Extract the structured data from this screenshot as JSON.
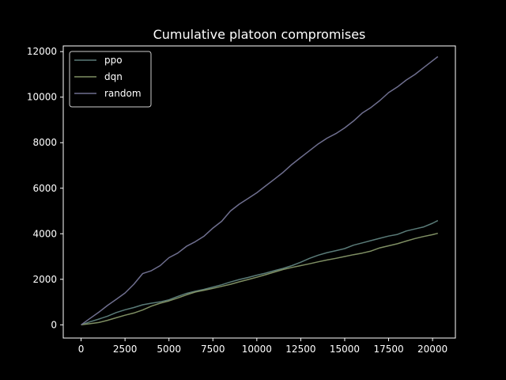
{
  "chart_data": {
    "type": "line",
    "title": "Cumulative platoon compromises",
    "xlabel": "",
    "ylabel": "",
    "xlim": [
      -1015,
      21300
    ],
    "ylim": [
      -580,
      12250
    ],
    "x_ticks": [
      0,
      2500,
      5000,
      7500,
      10000,
      12500,
      15000,
      17500,
      20000
    ],
    "y_ticks": [
      0,
      2000,
      4000,
      6000,
      8000,
      10000,
      12000
    ],
    "x_tick_labels": [
      "0",
      "2500",
      "5000",
      "7500",
      "10000",
      "12500",
      "15000",
      "17500",
      "20000"
    ],
    "y_tick_labels": [
      "0",
      "2000",
      "4000",
      "6000",
      "8000",
      "10000",
      "12000"
    ],
    "grid": false,
    "legend_position": "top-left",
    "series": [
      {
        "name": "ppo",
        "color": "#5a7b78",
        "x": [
          0,
          500,
          1000,
          1500,
          2000,
          2500,
          3000,
          3500,
          4000,
          4500,
          5000,
          5500,
          6000,
          6500,
          7000,
          7500,
          8000,
          8500,
          9000,
          9500,
          10000,
          10500,
          11000,
          11500,
          12000,
          12500,
          13000,
          13500,
          14000,
          14500,
          15000,
          15500,
          16000,
          16500,
          17000,
          17500,
          18000,
          18500,
          19000,
          19500,
          20000,
          20300
        ],
        "y": [
          0,
          130,
          250,
          380,
          540,
          660,
          760,
          880,
          950,
          1010,
          1100,
          1250,
          1380,
          1480,
          1560,
          1660,
          1760,
          1880,
          1990,
          2080,
          2180,
          2270,
          2380,
          2480,
          2600,
          2750,
          2920,
          3060,
          3170,
          3260,
          3350,
          3500,
          3600,
          3700,
          3800,
          3900,
          3970,
          4120,
          4210,
          4300,
          4460,
          4580
        ]
      },
      {
        "name": "dqn",
        "color": "#7f8f63",
        "x": [
          0,
          500,
          1000,
          1500,
          2000,
          2500,
          3000,
          3500,
          4000,
          4500,
          5000,
          5500,
          6000,
          6500,
          7000,
          7500,
          8000,
          8500,
          9000,
          9500,
          10000,
          10500,
          11000,
          11500,
          12000,
          12500,
          13000,
          13500,
          14000,
          14500,
          15000,
          15500,
          16000,
          16500,
          17000,
          17500,
          18000,
          18500,
          19000,
          19500,
          20000,
          20300
        ],
        "y": [
          0,
          50,
          100,
          200,
          310,
          420,
          520,
          650,
          820,
          950,
          1050,
          1180,
          1320,
          1440,
          1520,
          1600,
          1690,
          1780,
          1890,
          1990,
          2090,
          2200,
          2320,
          2430,
          2520,
          2600,
          2680,
          2770,
          2850,
          2920,
          3000,
          3080,
          3150,
          3240,
          3380,
          3470,
          3560,
          3680,
          3790,
          3880,
          3960,
          4020
        ]
      },
      {
        "name": "random",
        "color": "#6f6f8f",
        "x": [
          0,
          500,
          1000,
          1500,
          2000,
          2500,
          3000,
          3500,
          4000,
          4500,
          5000,
          5500,
          6000,
          6500,
          7000,
          7500,
          8000,
          8500,
          9000,
          9500,
          10000,
          10500,
          11000,
          11500,
          12000,
          12500,
          13000,
          13500,
          14000,
          14500,
          15000,
          15500,
          16000,
          16500,
          17000,
          17500,
          18000,
          18500,
          19000,
          19500,
          20000,
          20300
        ],
        "y": [
          0,
          280,
          550,
          850,
          1120,
          1400,
          1780,
          2250,
          2380,
          2600,
          2950,
          3150,
          3450,
          3650,
          3900,
          4250,
          4550,
          5000,
          5300,
          5550,
          5800,
          6100,
          6400,
          6700,
          7050,
          7350,
          7650,
          7950,
          8200,
          8400,
          8650,
          8950,
          9300,
          9550,
          9850,
          10200,
          10450,
          10750,
          11000,
          11300,
          11600,
          11780
        ]
      }
    ]
  }
}
